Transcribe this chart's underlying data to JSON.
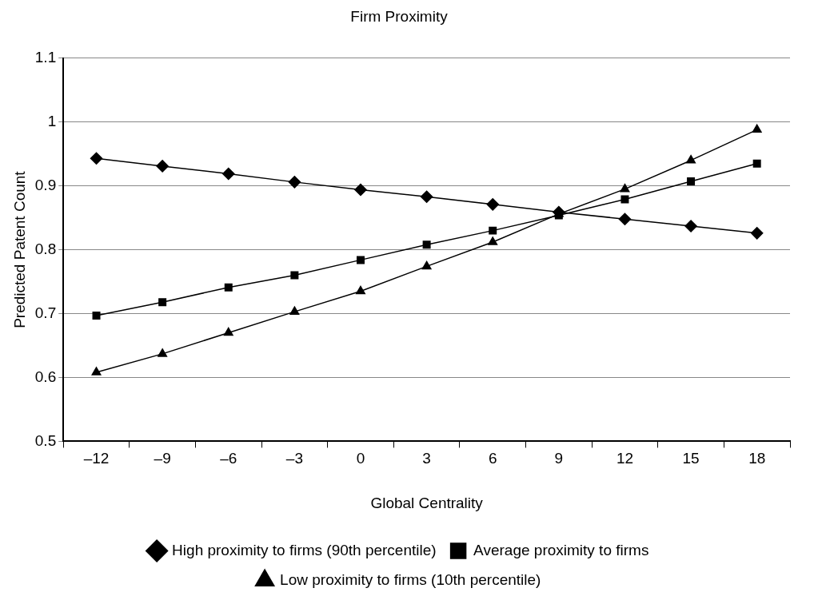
{
  "chart_data": {
    "type": "line",
    "title": "Firm Proximity",
    "xlabel": "Global Centrality",
    "ylabel": "Predicted Patent Count",
    "categories": [
      "–12",
      "–9",
      "–6",
      "–3",
      "0",
      "3",
      "6",
      "9",
      "12",
      "15",
      "18"
    ],
    "series": [
      {
        "name": "High proximity to firms (90th percentile)",
        "color": "#000000",
        "marker": "diamond",
        "values": [
          0.943,
          0.931,
          0.919,
          0.906,
          0.894,
          0.883,
          0.871,
          0.859,
          0.848,
          0.837,
          0.826
        ]
      },
      {
        "name": "Average proximity to firms",
        "color": "#000000",
        "marker": "square",
        "values": [
          0.697,
          0.718,
          0.741,
          0.76,
          0.784,
          0.808,
          0.83,
          0.854,
          0.879,
          0.907,
          0.935
        ]
      },
      {
        "name": "Low proximity to firms (10th percentile)",
        "color": "#000000",
        "marker": "triangle",
        "values": [
          0.608,
          0.637,
          0.67,
          0.703,
          0.735,
          0.774,
          0.812,
          0.856,
          0.895,
          0.94,
          0.988
        ]
      }
    ],
    "ylim": [
      0.5,
      1.1
    ],
    "yticks": [
      0.5,
      0.6,
      0.7,
      0.8,
      0.9,
      1,
      1.1
    ],
    "grid": "y",
    "legend": "bottom",
    "line_style": "solid"
  }
}
